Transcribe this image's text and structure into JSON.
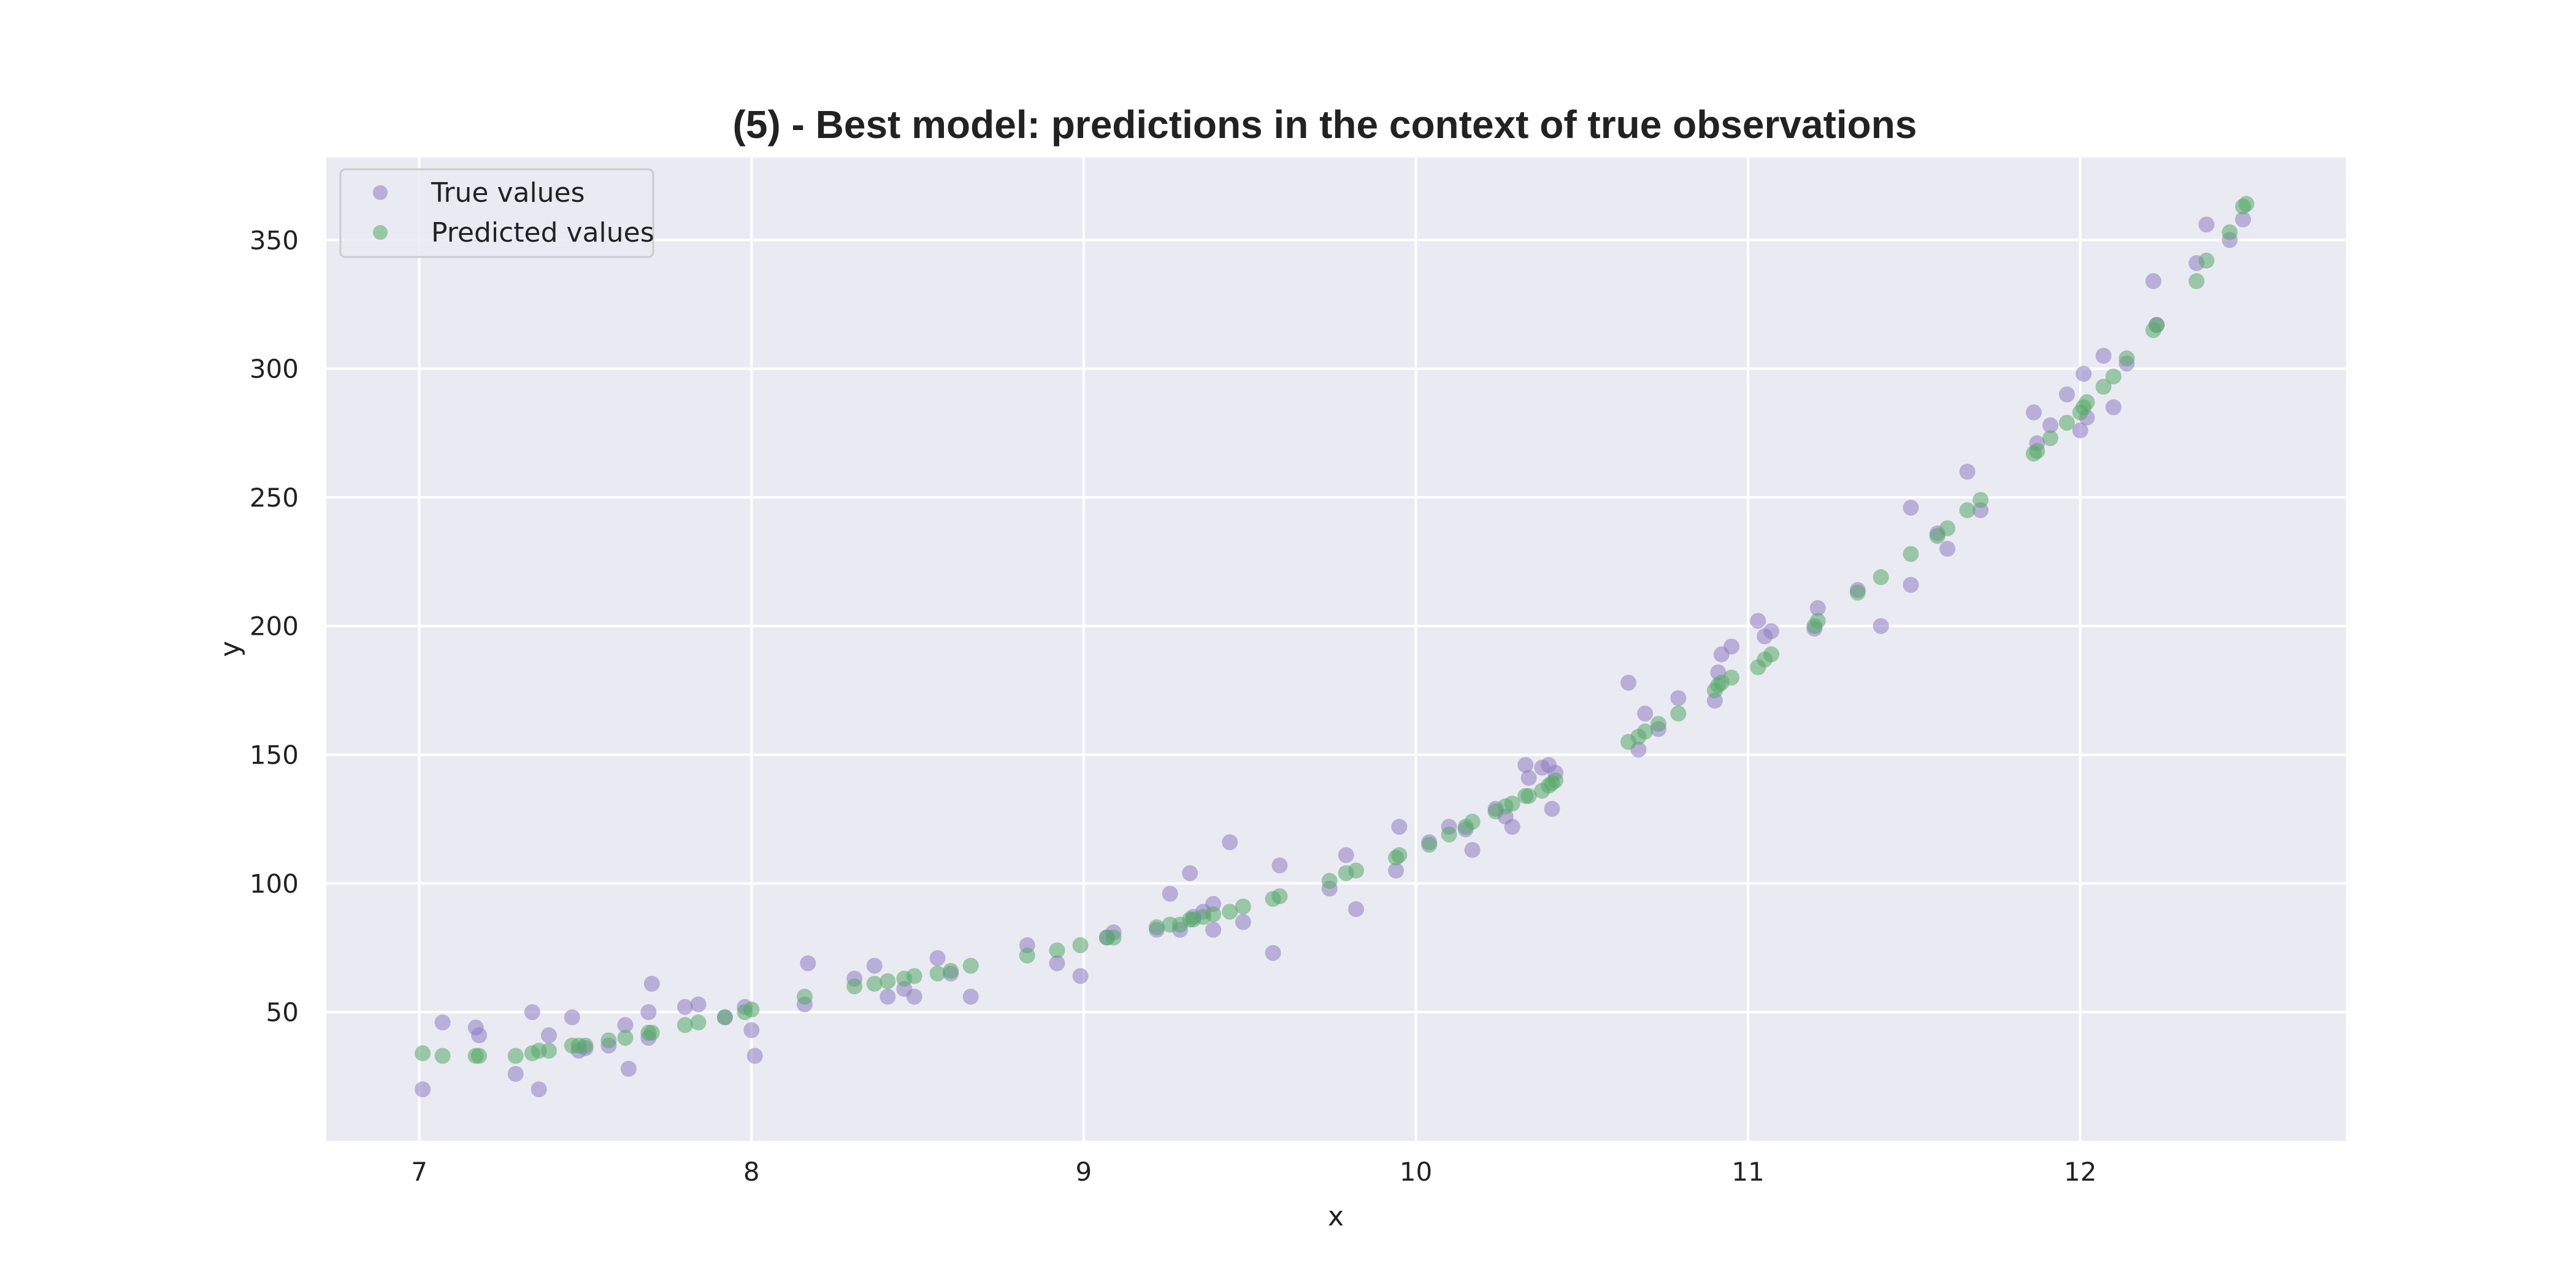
{
  "chart_data": {
    "type": "scatter",
    "title": "(5) - Best model: predictions in the context of true observations",
    "xlabel": "x",
    "ylabel": "y",
    "xlim": [
      6.72,
      12.8
    ],
    "ylim": [
      0,
      382
    ],
    "xticks": [
      7,
      8,
      9,
      10,
      11,
      12
    ],
    "yticks": [
      50,
      100,
      150,
      200,
      250,
      300,
      350
    ],
    "grid": true,
    "legend_position": "top-left",
    "colors": {
      "background": "#eaeaf2",
      "grid": "#ffffff",
      "true_values": "#8e7cc3",
      "predicted_values": "#55a868"
    },
    "series": [
      {
        "name": "True values",
        "color": "#8e7cc3",
        "points": [
          [
            7.01,
            20
          ],
          [
            7.07,
            46
          ],
          [
            7.17,
            44
          ],
          [
            7.18,
            41
          ],
          [
            7.29,
            26
          ],
          [
            7.34,
            50
          ],
          [
            7.36,
            20
          ],
          [
            7.39,
            41
          ],
          [
            7.46,
            48
          ],
          [
            7.48,
            35
          ],
          [
            7.5,
            36
          ],
          [
            7.57,
            37
          ],
          [
            7.62,
            45
          ],
          [
            7.63,
            28
          ],
          [
            7.69,
            50
          ],
          [
            7.69,
            40
          ],
          [
            7.7,
            61
          ],
          [
            7.8,
            52
          ],
          [
            7.84,
            53
          ],
          [
            7.92,
            48
          ],
          [
            7.98,
            52
          ],
          [
            8.0,
            43
          ],
          [
            8.01,
            33
          ],
          [
            8.16,
            53
          ],
          [
            8.17,
            69
          ],
          [
            8.31,
            63
          ],
          [
            8.37,
            68
          ],
          [
            8.41,
            56
          ],
          [
            8.46,
            59
          ],
          [
            8.49,
            56
          ],
          [
            8.56,
            71
          ],
          [
            8.6,
            65
          ],
          [
            8.66,
            56
          ],
          [
            8.83,
            76
          ],
          [
            8.92,
            69
          ],
          [
            8.99,
            64
          ],
          [
            9.07,
            79
          ],
          [
            9.09,
            81
          ],
          [
            9.22,
            82
          ],
          [
            9.26,
            96
          ],
          [
            9.29,
            82
          ],
          [
            9.32,
            104
          ],
          [
            9.33,
            87
          ],
          [
            9.36,
            89
          ],
          [
            9.39,
            92
          ],
          [
            9.39,
            82
          ],
          [
            9.44,
            116
          ],
          [
            9.48,
            85
          ],
          [
            9.57,
            73
          ],
          [
            9.59,
            107
          ],
          [
            9.74,
            98
          ],
          [
            9.79,
            111
          ],
          [
            9.82,
            90
          ],
          [
            9.94,
            105
          ],
          [
            9.95,
            122
          ],
          [
            10.04,
            116
          ],
          [
            10.1,
            122
          ],
          [
            10.15,
            121
          ],
          [
            10.17,
            113
          ],
          [
            10.24,
            129
          ],
          [
            10.27,
            126
          ],
          [
            10.29,
            122
          ],
          [
            10.33,
            146
          ],
          [
            10.34,
            141
          ],
          [
            10.38,
            145
          ],
          [
            10.4,
            146
          ],
          [
            10.41,
            129
          ],
          [
            10.42,
            143
          ],
          [
            10.64,
            178
          ],
          [
            10.67,
            152
          ],
          [
            10.69,
            166
          ],
          [
            10.73,
            160
          ],
          [
            10.79,
            172
          ],
          [
            10.9,
            171
          ],
          [
            10.91,
            182
          ],
          [
            10.92,
            189
          ],
          [
            10.95,
            192
          ],
          [
            11.03,
            202
          ],
          [
            11.05,
            196
          ],
          [
            11.07,
            198
          ],
          [
            11.2,
            199
          ],
          [
            11.21,
            207
          ],
          [
            11.33,
            214
          ],
          [
            11.4,
            200
          ],
          [
            11.49,
            246
          ],
          [
            11.49,
            216
          ],
          [
            11.57,
            236
          ],
          [
            11.6,
            230
          ],
          [
            11.66,
            260
          ],
          [
            11.7,
            245
          ],
          [
            11.86,
            283
          ],
          [
            11.87,
            271
          ],
          [
            11.91,
            278
          ],
          [
            11.96,
            290
          ],
          [
            12.0,
            276
          ],
          [
            12.01,
            298
          ],
          [
            12.02,
            281
          ],
          [
            12.07,
            305
          ],
          [
            12.1,
            285
          ],
          [
            12.14,
            302
          ],
          [
            12.22,
            334
          ],
          [
            12.23,
            317
          ],
          [
            12.35,
            341
          ],
          [
            12.38,
            356
          ],
          [
            12.45,
            350
          ],
          [
            12.49,
            358
          ]
        ]
      },
      {
        "name": "Predicted values",
        "color": "#55a868",
        "points": [
          [
            7.01,
            34
          ],
          [
            7.07,
            33
          ],
          [
            7.17,
            33
          ],
          [
            7.18,
            33
          ],
          [
            7.29,
            33
          ],
          [
            7.34,
            34
          ],
          [
            7.36,
            35
          ],
          [
            7.39,
            35
          ],
          [
            7.46,
            37
          ],
          [
            7.48,
            37
          ],
          [
            7.5,
            37
          ],
          [
            7.57,
            39
          ],
          [
            7.62,
            40
          ],
          [
            7.69,
            42
          ],
          [
            7.7,
            42
          ],
          [
            7.8,
            45
          ],
          [
            7.84,
            46
          ],
          [
            7.92,
            48
          ],
          [
            7.98,
            50
          ],
          [
            8.0,
            51
          ],
          [
            8.16,
            56
          ],
          [
            8.31,
            60
          ],
          [
            8.37,
            61
          ],
          [
            8.41,
            62
          ],
          [
            8.46,
            63
          ],
          [
            8.49,
            64
          ],
          [
            8.56,
            65
          ],
          [
            8.6,
            66
          ],
          [
            8.66,
            68
          ],
          [
            8.83,
            72
          ],
          [
            8.92,
            74
          ],
          [
            8.99,
            76
          ],
          [
            9.07,
            79
          ],
          [
            9.09,
            79
          ],
          [
            9.22,
            83
          ],
          [
            9.26,
            84
          ],
          [
            9.29,
            84
          ],
          [
            9.32,
            86
          ],
          [
            9.33,
            86
          ],
          [
            9.36,
            87
          ],
          [
            9.39,
            88
          ],
          [
            9.44,
            89
          ],
          [
            9.48,
            91
          ],
          [
            9.57,
            94
          ],
          [
            9.59,
            95
          ],
          [
            9.74,
            101
          ],
          [
            9.79,
            104
          ],
          [
            9.82,
            105
          ],
          [
            9.94,
            110
          ],
          [
            9.95,
            111
          ],
          [
            10.04,
            115
          ],
          [
            10.1,
            119
          ],
          [
            10.15,
            122
          ],
          [
            10.17,
            124
          ],
          [
            10.24,
            128
          ],
          [
            10.27,
            130
          ],
          [
            10.29,
            131
          ],
          [
            10.33,
            134
          ],
          [
            10.34,
            134
          ],
          [
            10.38,
            136
          ],
          [
            10.4,
            138
          ],
          [
            10.41,
            139
          ],
          [
            10.42,
            140
          ],
          [
            10.64,
            155
          ],
          [
            10.67,
            157
          ],
          [
            10.69,
            159
          ],
          [
            10.73,
            162
          ],
          [
            10.79,
            166
          ],
          [
            10.9,
            175
          ],
          [
            10.91,
            177
          ],
          [
            10.92,
            178
          ],
          [
            10.95,
            180
          ],
          [
            11.03,
            184
          ],
          [
            11.05,
            187
          ],
          [
            11.07,
            189
          ],
          [
            11.2,
            200
          ],
          [
            11.21,
            202
          ],
          [
            11.33,
            213
          ],
          [
            11.4,
            219
          ],
          [
            11.49,
            228
          ],
          [
            11.57,
            235
          ],
          [
            11.6,
            238
          ],
          [
            11.66,
            245
          ],
          [
            11.7,
            249
          ],
          [
            11.86,
            267
          ],
          [
            11.87,
            268
          ],
          [
            11.91,
            273
          ],
          [
            11.96,
            279
          ],
          [
            12.0,
            283
          ],
          [
            12.01,
            285
          ],
          [
            12.02,
            287
          ],
          [
            12.07,
            293
          ],
          [
            12.1,
            297
          ],
          [
            12.14,
            304
          ],
          [
            12.22,
            315
          ],
          [
            12.23,
            317
          ],
          [
            12.35,
            334
          ],
          [
            12.38,
            342
          ],
          [
            12.45,
            353
          ],
          [
            12.49,
            363
          ],
          [
            12.5,
            364
          ]
        ]
      }
    ]
  }
}
